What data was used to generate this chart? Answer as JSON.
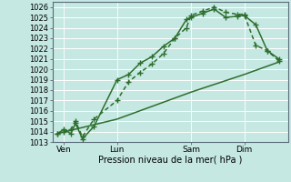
{
  "xlabel": "Pression niveau de la mer( hPa )",
  "background_color": "#c5e8e2",
  "grid_color": "#ffffff",
  "line_color": "#2d6e2d",
  "ylim": [
    1013,
    1026.5
  ],
  "xlim": [
    0,
    10.2
  ],
  "yticks": [
    1013,
    1014,
    1015,
    1016,
    1017,
    1018,
    1019,
    1020,
    1021,
    1022,
    1023,
    1024,
    1025,
    1026
  ],
  "xtick_labels": [
    "Ven",
    "Lun",
    "Sam",
    "Dim"
  ],
  "xtick_positions": [
    0.5,
    2.8,
    6.0,
    8.3
  ],
  "vline_positions": [
    0.5,
    2.8,
    6.0,
    8.3
  ],
  "line1_x": [
    0.2,
    0.5,
    0.8,
    1.0,
    1.3,
    1.8,
    2.8,
    3.3,
    3.8,
    4.3,
    4.8,
    5.3,
    5.8,
    6.0,
    6.5,
    7.0,
    7.5,
    8.0,
    8.3,
    8.8,
    9.3,
    9.8
  ],
  "line1_y": [
    1013.8,
    1014.2,
    1013.8,
    1014.8,
    1013.3,
    1014.5,
    1019.0,
    1019.5,
    1020.6,
    1021.2,
    1022.2,
    1023.0,
    1024.8,
    1025.0,
    1025.4,
    1025.8,
    1025.0,
    1025.1,
    1025.2,
    1024.3,
    1021.8,
    1021.0
  ],
  "line2_x": [
    0.2,
    0.5,
    0.8,
    1.0,
    1.3,
    1.8,
    2.8,
    3.3,
    3.8,
    4.3,
    4.8,
    5.3,
    5.8,
    6.0,
    6.5,
    7.0,
    7.5,
    8.0,
    8.3,
    8.8,
    9.3,
    9.8
  ],
  "line2_y": [
    1013.8,
    1014.0,
    1014.2,
    1015.0,
    1013.5,
    1015.2,
    1017.0,
    1018.8,
    1019.7,
    1020.5,
    1021.5,
    1023.0,
    1024.0,
    1025.2,
    1025.6,
    1026.0,
    1025.5,
    1025.3,
    1025.3,
    1022.3,
    1021.8,
    1020.8
  ],
  "line3_x": [
    0.2,
    2.8,
    6.0,
    8.3,
    9.8
  ],
  "line3_y": [
    1013.8,
    1015.2,
    1017.8,
    1019.5,
    1020.7
  ],
  "marker_size": 4,
  "linewidth": 1.1
}
